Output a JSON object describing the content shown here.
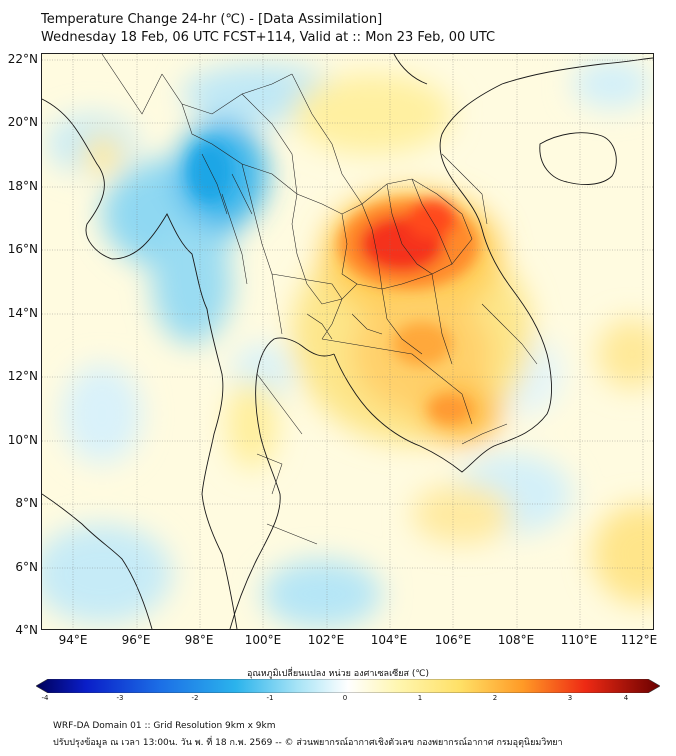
{
  "header": {
    "title": "Temperature Change 24-hr (℃) - [Data Assimilation]",
    "subtitle": "Wednesday 18 Feb, 06 UTC FCST+114, Valid at :: Mon 23 Feb, 00 UTC"
  },
  "map": {
    "lat_labels": [
      "22°N",
      "20°N",
      "18°N",
      "16°N",
      "14°N",
      "12°N",
      "10°N",
      "8°N",
      "6°N",
      "4°N"
    ],
    "lon_labels": [
      "94°E",
      "96°E",
      "98°E",
      "100°E",
      "102°E",
      "104°E",
      "106°E",
      "108°E",
      "110°E",
      "112°E"
    ],
    "lat_range": [
      4,
      22
    ],
    "lon_range": [
      93,
      112.3
    ],
    "anomalies": [
      {
        "region": "northeast-thailand-laos warm core",
        "lon": 104.2,
        "lat": 16.6,
        "value": 3.3
      },
      {
        "region": "cambodia warm",
        "lon": 105.0,
        "lat": 13.0,
        "value": 2.2
      },
      {
        "region": "southern cambodia warm",
        "lon": 106.0,
        "lat": 11.0,
        "value": 2.4
      },
      {
        "region": "myanmar cold",
        "lon": 97.8,
        "lat": 18.0,
        "value": -1.8
      }
    ]
  },
  "colorbar": {
    "title": "อุณหภูมิเปลี่ยนแปลง หน่วย องศาเซลเซียส (℃)",
    "ticks": [
      "-4",
      "-3",
      "-2",
      "-1",
      "0",
      "1",
      "2",
      "3",
      "4"
    ],
    "min": -4,
    "max": 4
  },
  "footer": {
    "line1": "WRF-DA Domain 01 :: Grid Resolution 9km x 9km",
    "line2": "ปรับปรุงข้อมูล ณ เวลา 13:00น. วัน พ. ที่ 18 ก.พ. 2569 -- © ส่วนพยากรณ์อากาศเชิงตัวเลข กองพยากรณ์อากาศ กรมอุตุนิยมวิทยา"
  }
}
